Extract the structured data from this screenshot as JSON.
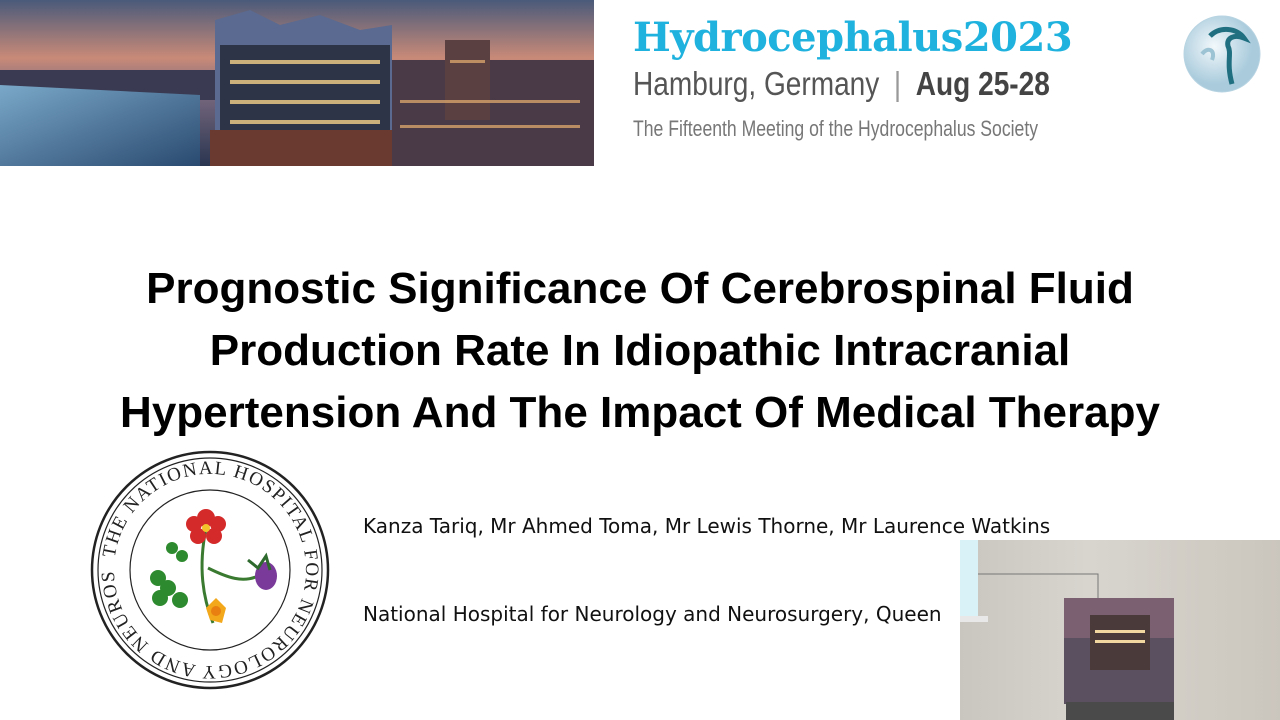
{
  "conference": {
    "title": "Hydrocephalus2023",
    "location": "Hamburg, Germany",
    "separator": "|",
    "dates": "Aug 25-28",
    "subtitle": "The Fifteenth Meeting of the Hydrocephalus Society",
    "accent_color": "#1fb2de"
  },
  "slide": {
    "title_lines": [
      "Prognostic Significance Of Cerebrospinal Fluid",
      "Production Rate In Idiopathic Intracranial",
      "Hypertension And The Impact Of Medical Therapy"
    ],
    "authors": "Kanza Tariq, Mr Ahmed Toma, Mr Lewis Thorne, Mr Laurence Watkins",
    "affiliation": "National Hospital for Neurology and Neurosurgery, Queen"
  },
  "seal": {
    "text": "THE NATIONAL HOSPITAL FOR NEUROLOGY AND NEUROSURGERY"
  }
}
